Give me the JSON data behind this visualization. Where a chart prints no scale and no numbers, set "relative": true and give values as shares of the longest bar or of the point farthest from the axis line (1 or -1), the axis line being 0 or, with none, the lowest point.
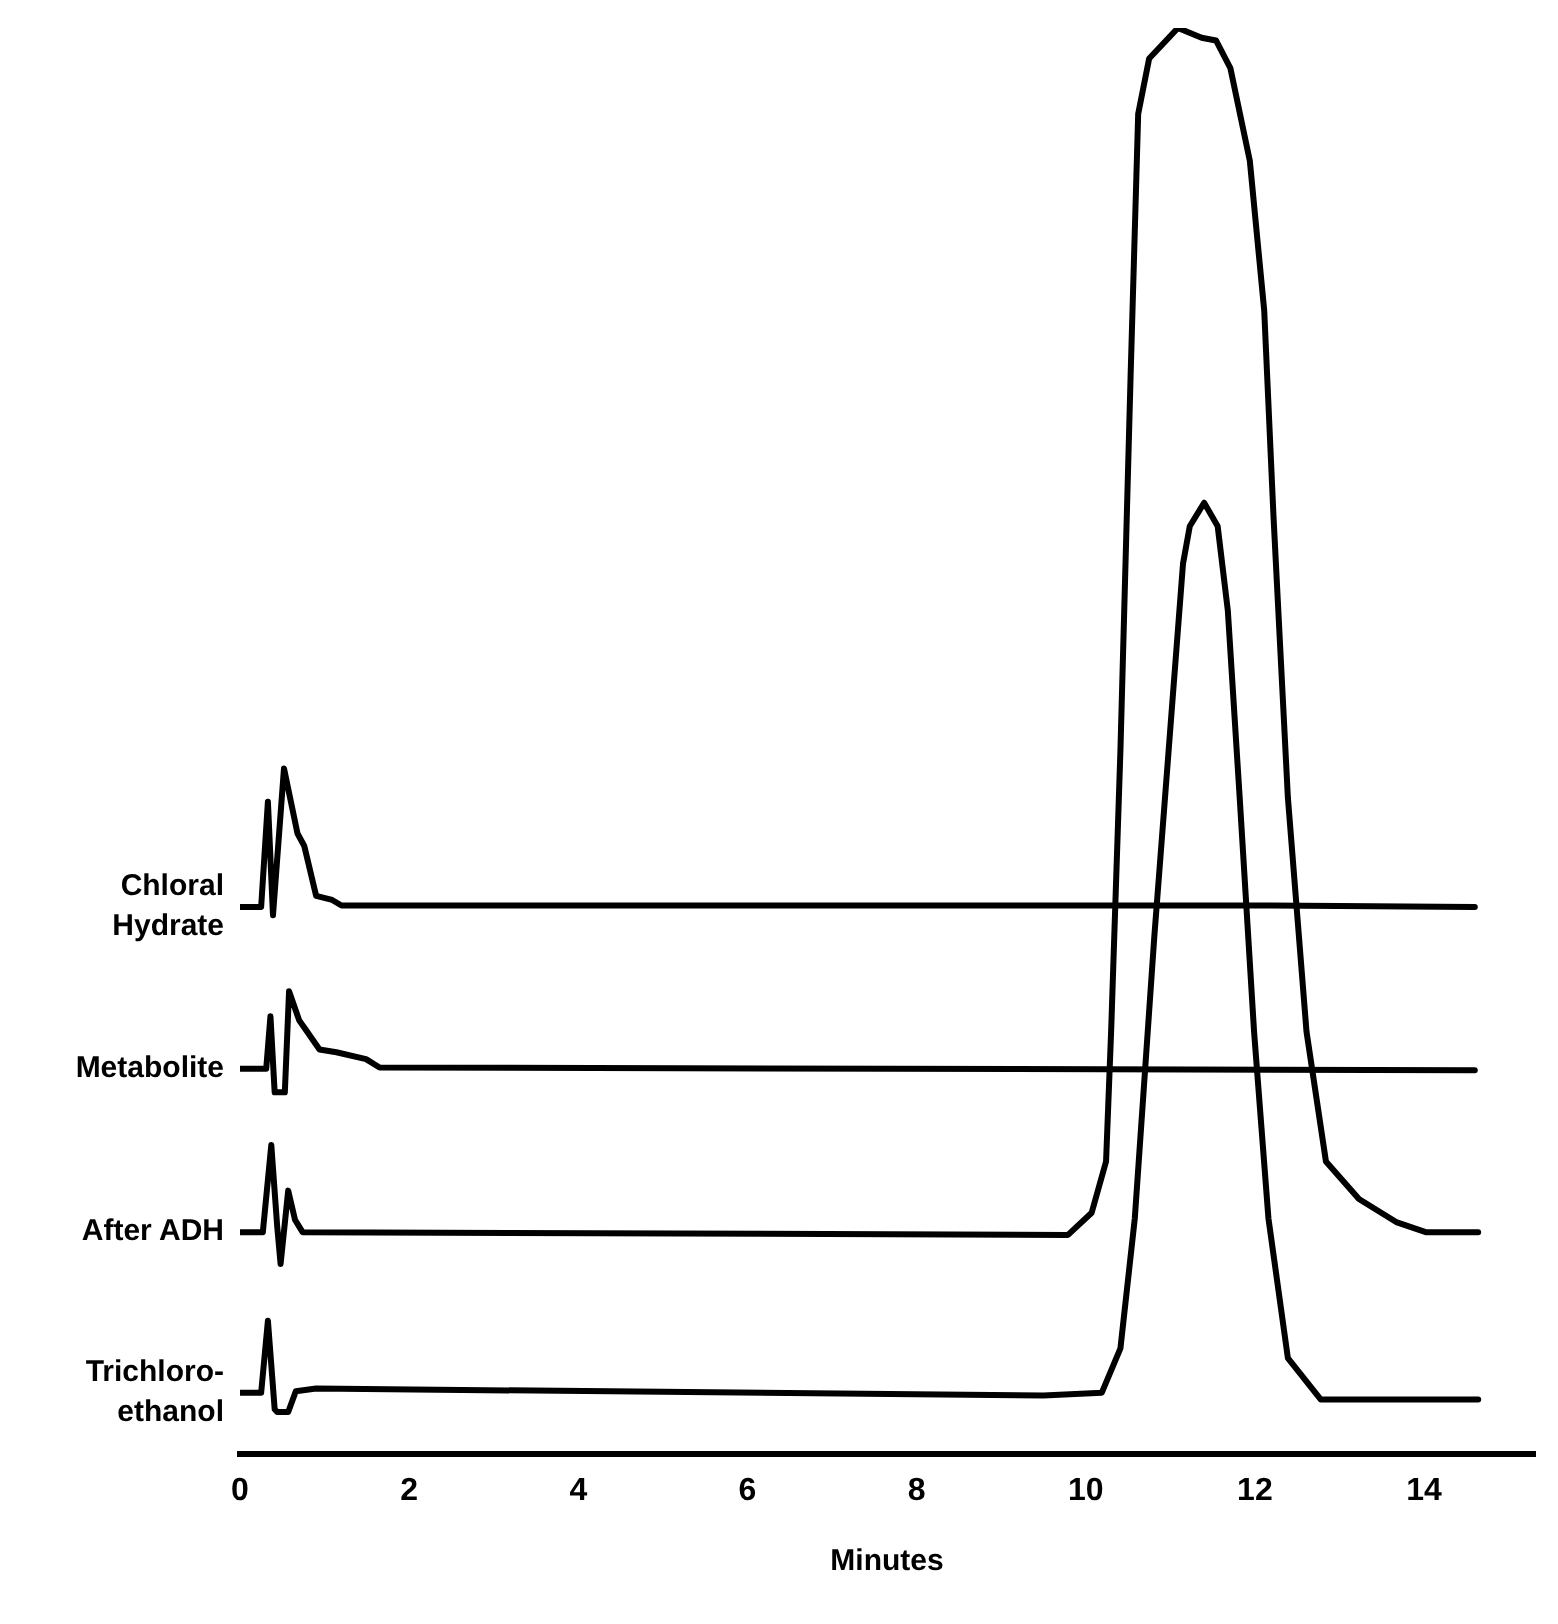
{
  "chart_data": {
    "type": "line",
    "xlabel": "Minutes",
    "relative": true,
    "xlim": [
      0,
      15.3
    ],
    "xticks": [
      0,
      2,
      4,
      6,
      8,
      10,
      12,
      14
    ],
    "grid": false,
    "legend": false,
    "marker": "none",
    "line_style": "solid",
    "series": [
      {
        "name": "Chloral Hydrate",
        "color": "#000000",
        "x": [
          0,
          0.25,
          0.33,
          0.39,
          0.52,
          0.68,
          0.76,
          0.9,
          1.09,
          1.2,
          10,
          12,
          14.6
        ],
        "values": [
          0.365,
          0.365,
          0.441,
          0.359,
          0.465,
          0.418,
          0.409,
          0.373,
          0.37,
          0.366,
          0.366,
          0.366,
          0.365
        ]
      },
      {
        "name": "Metabolite",
        "color": "#000000",
        "x": [
          0,
          0.31,
          0.36,
          0.41,
          0.53,
          0.58,
          0.7,
          0.78,
          0.94,
          1.14,
          1.49,
          1.65,
          14.6
        ],
        "values": [
          0.248,
          0.248,
          0.286,
          0.231,
          0.231,
          0.304,
          0.283,
          0.276,
          0.262,
          0.26,
          0.255,
          0.249,
          0.247
        ]
      },
      {
        "name": "After ADH",
        "color": "#000000",
        "x": [
          0,
          0.27,
          0.37,
          0.44,
          0.48,
          0.57,
          0.65,
          0.74,
          9.79,
          10.07,
          10.24,
          10.3,
          10.41,
          10.53,
          10.62,
          10.75,
          11.09,
          11.37,
          11.54,
          11.71,
          11.94,
          12.11,
          12.22,
          12.39,
          12.61,
          12.84,
          13.23,
          13.68,
          14.02,
          14.64
        ],
        "values": [
          0.13,
          0.13,
          0.193,
          0.134,
          0.107,
          0.16,
          0.139,
          0.13,
          0.128,
          0.144,
          0.181,
          0.275,
          0.478,
          0.748,
          0.938,
          0.978,
          1.0,
          0.993,
          0.991,
          0.971,
          0.904,
          0.796,
          0.647,
          0.444,
          0.275,
          0.181,
          0.154,
          0.137,
          0.13,
          0.13
        ]
      },
      {
        "name": "Trichloro-ethanol",
        "color": "#000000",
        "x": [
          0,
          0.25,
          0.33,
          0.41,
          0.44,
          0.57,
          0.66,
          0.9,
          9.5,
          10.19,
          10.41,
          10.58,
          10.81,
          10.98,
          11.15,
          11.23,
          11.4,
          11.56,
          11.68,
          11.82,
          11.99,
          12.16,
          12.39,
          12.78,
          14.64
        ],
        "values": [
          0.014,
          0.014,
          0.066,
          0.002,
          0,
          0,
          0.015,
          0.017,
          0.012,
          0.014,
          0.046,
          0.14,
          0.343,
          0.478,
          0.613,
          0.64,
          0.657,
          0.64,
          0.579,
          0.444,
          0.275,
          0.14,
          0.039,
          0.009,
          0.009
        ]
      }
    ]
  }
}
